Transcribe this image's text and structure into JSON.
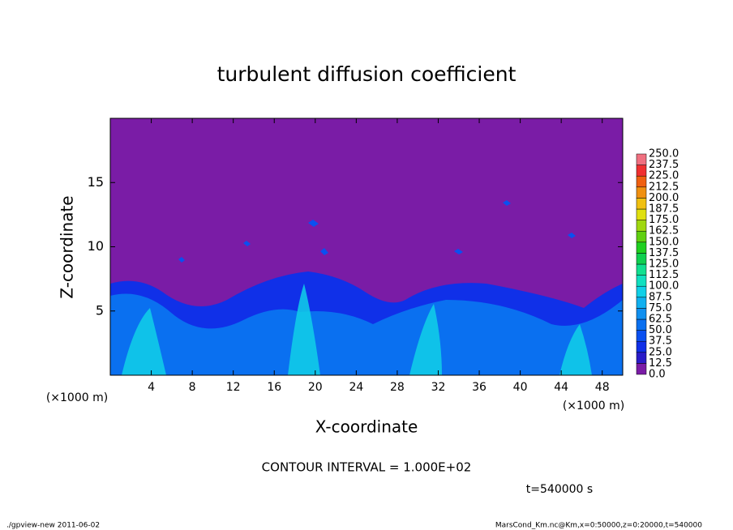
{
  "chart_data": {
    "type": "contour",
    "title": "turbulent diffusion coefficient",
    "xlabel": "X-coordinate",
    "ylabel": "Z-coordinate",
    "x_unit_left": "(×1000 m)",
    "x_unit_right": "(×1000 m)",
    "xlim": [
      0,
      50
    ],
    "xticks": [
      4,
      8,
      12,
      16,
      20,
      24,
      28,
      32,
      36,
      40,
      44,
      48
    ],
    "ylim": [
      0,
      20
    ],
    "yticks": [
      5,
      10,
      15
    ],
    "colorbar": {
      "levels": [
        {
          "value": 0,
          "label": "0.0"
        },
        {
          "value": 12.5,
          "label": "12.5"
        },
        {
          "value": 25,
          "label": "25.0"
        },
        {
          "value": 37.5,
          "label": "37.5"
        },
        {
          "value": 50,
          "label": "50.0"
        },
        {
          "value": 62.5,
          "label": "62.5"
        },
        {
          "value": 75,
          "label": "75.0"
        },
        {
          "value": 87.5,
          "label": "87.5"
        },
        {
          "value": 100,
          "label": "100.0"
        },
        {
          "value": 112.5,
          "label": "112.5"
        },
        {
          "value": 125,
          "label": "125.0"
        },
        {
          "value": 137.5,
          "label": "137.5"
        },
        {
          "value": 150,
          "label": "150.0"
        },
        {
          "value": 162.5,
          "label": "162.5"
        },
        {
          "value": 175,
          "label": "175.0"
        },
        {
          "value": 187.5,
          "label": "187.5"
        },
        {
          "value": 200,
          "label": "200.0"
        },
        {
          "value": 212.5,
          "label": "212.5"
        },
        {
          "value": 225,
          "label": "225.0"
        },
        {
          "value": 237.5,
          "label": "237.5"
        },
        {
          "value": 250,
          "label": "250.0"
        }
      ],
      "colors": [
        "#7a1ca6",
        "#2a1cc8",
        "#1030e8",
        "#0a50f0",
        "#0a70f0",
        "#1090f0",
        "#10b0f0",
        "#10d0e8",
        "#10e0c0",
        "#10e090",
        "#10d050",
        "#20d020",
        "#60d010",
        "#a0d810",
        "#e0e010",
        "#f0c010",
        "#f09010",
        "#f06010",
        "#f03030",
        "#f07080"
      ]
    },
    "contour_interval_text": "CONTOUR INTERVAL = 1.000E+02",
    "time_text": "t=540000 s",
    "footer_left": "./gpview-new   2011-06-02",
    "footer_right": "MarsCond_Km.nc@Km,x=0:50000,z=0:20000,t=540000"
  }
}
